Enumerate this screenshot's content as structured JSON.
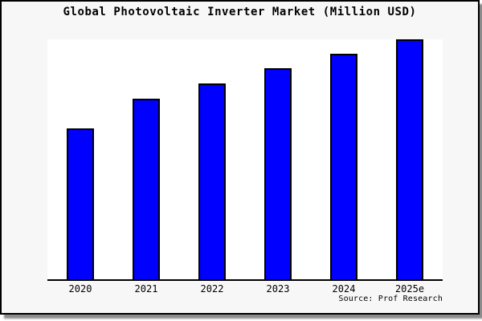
{
  "title": "Global Photovoltaic Inverter Market (Million USD)",
  "source_note": "Source: Prof Research",
  "colors": {
    "bar_fill": "#0000ff",
    "bar_border": "#000000",
    "axis": "#000000",
    "plot_background": "#ffffff",
    "frame_background": "#f7f7f7",
    "frame_border": "#000000",
    "shadow": "#8c8c8c",
    "text": "#000000"
  },
  "chart_data": {
    "type": "bar",
    "title": "Global Photovoltaic Inverter Market (Million USD)",
    "categories": [
      "2020",
      "2021",
      "2022",
      "2023",
      "2024",
      "2025e"
    ],
    "values": [
      188,
      225,
      244,
      263,
      281,
      299
    ],
    "value_scale": "relative bar heights in pixels; chart shows no y-axis ticks or numeric labels",
    "xlabel": "",
    "ylabel": "",
    "ylim": [
      0,
      299
    ],
    "grid": false,
    "legend_position": "none",
    "annotations": [
      "Source: Prof Research"
    ]
  }
}
